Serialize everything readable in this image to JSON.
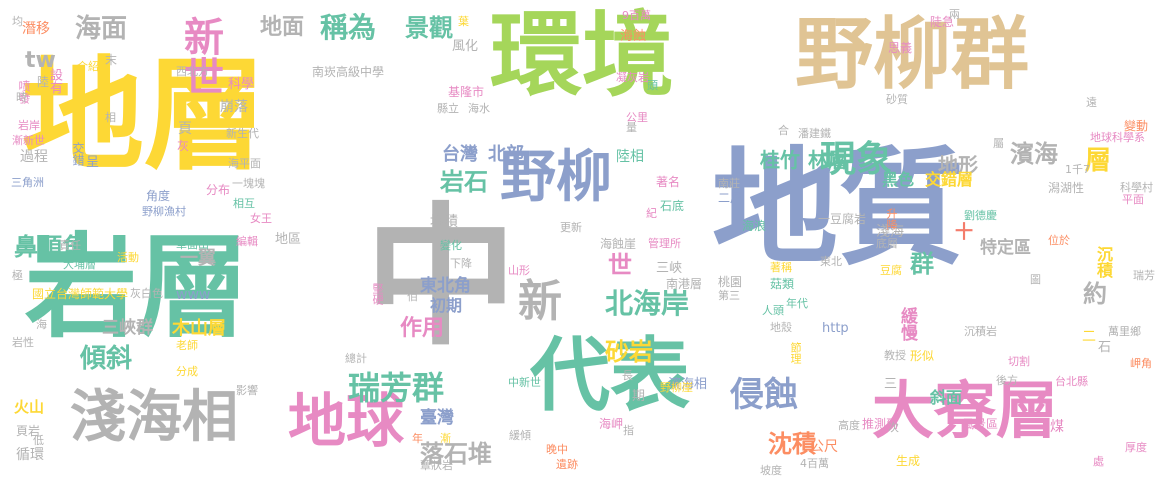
{
  "palette": {
    "yellow": "#FDD835",
    "green": "#A5D65A",
    "blue": "#8C9FCB",
    "tan": "#E0C494",
    "teal": "#66C2A5",
    "gray": "#B3B3B3",
    "pink": "#E78AC3",
    "orange": "#FC8D62",
    "red": "#F47C6B"
  },
  "words": [
    {
      "text": "地層",
      "color": "yellow"
    },
    {
      "text": "環境",
      "color": "green"
    },
    {
      "text": "野柳群",
      "color": "tan"
    },
    {
      "text": "地質",
      "color": "blue"
    },
    {
      "text": "中",
      "color": "gray"
    },
    {
      "text": "岩層",
      "color": "teal"
    },
    {
      "text": "代表",
      "color": "teal"
    },
    {
      "text": "大寮層",
      "color": "pink"
    },
    {
      "text": "淺海相",
      "color": "gray"
    },
    {
      "text": "地球",
      "color": "pink"
    },
    {
      "text": "野柳",
      "color": "blue"
    },
    {
      "text": "新",
      "color": "gray"
    },
    {
      "text": "侵蝕",
      "color": "blue"
    },
    {
      "text": "現象",
      "color": "teal"
    },
    {
      "text": "新世",
      "color": "pink"
    },
    {
      "text": "海面",
      "color": "gray"
    },
    {
      "text": "地面",
      "color": "gray"
    },
    {
      "text": "稱為",
      "color": "teal"
    },
    {
      "text": "景觀",
      "color": "teal"
    },
    {
      "text": "濱海",
      "color": "gray"
    },
    {
      "text": "地形",
      "color": "gray"
    },
    {
      "text": "瑞芳群",
      "color": "teal"
    },
    {
      "text": "北海岸",
      "color": "teal"
    },
    {
      "text": "鼻頭角",
      "color": "teal"
    },
    {
      "text": "傾斜",
      "color": "teal"
    },
    {
      "text": "砂岩",
      "color": "yellow"
    },
    {
      "text": "沈積",
      "color": "orange"
    },
    {
      "text": "落石堆",
      "color": "gray"
    },
    {
      "text": "岩石",
      "color": "teal"
    },
    {
      "text": "台灣",
      "color": "blue"
    },
    {
      "text": "北部",
      "color": "blue"
    },
    {
      "text": "桂竹",
      "color": "teal"
    },
    {
      "text": "林層",
      "color": "teal"
    },
    {
      "text": "群",
      "color": "teal"
    },
    {
      "text": "世",
      "color": "pink"
    },
    {
      "text": "層",
      "color": "yellow"
    },
    {
      "text": "約",
      "color": "gray"
    },
    {
      "text": "作用",
      "color": "pink"
    },
    {
      "text": "tw",
      "color": "gray"
    },
    {
      "text": "三峽群",
      "color": "gray"
    },
    {
      "text": "木山層",
      "color": "yellow"
    },
    {
      "text": "一翼",
      "color": "gray"
    },
    {
      "text": "交錯層",
      "color": "yellow"
    },
    {
      "text": "黑色",
      "color": "teal"
    },
    {
      "text": "特定區",
      "color": "gray"
    },
    {
      "text": "沉積",
      "color": "yellow"
    },
    {
      "text": "緩慢",
      "color": "pink"
    },
    {
      "text": "斜面",
      "color": "teal"
    },
    {
      "text": "臺灣",
      "color": "blue"
    },
    {
      "text": "東北角",
      "color": "blue"
    },
    {
      "text": "初期",
      "color": "blue"
    },
    {
      "text": "南崁高級中學",
      "color": "gray"
    },
    {
      "text": "國立台灣師範大學",
      "color": "yellow"
    },
    {
      "text": "基隆市",
      "color": "pink"
    },
    {
      "text": "海蝕崖",
      "color": "gray"
    },
    {
      "text": "濱海相",
      "color": "blue"
    },
    {
      "text": "堆積",
      "color": "gray"
    },
    {
      "text": "推測到",
      "color": "pink"
    },
    {
      "text": "公尺",
      "color": "orange"
    },
    {
      "text": "風景區",
      "color": "pink"
    },
    {
      "text": "一豆腐岩",
      "color": "gray"
    },
    {
      "text": "淺海",
      "color": "gray"
    },
    {
      "text": "地區",
      "color": "gray"
    },
    {
      "text": "火山",
      "color": "yellow"
    },
    {
      "text": "循環",
      "color": "gray"
    },
    {
      "text": "過程",
      "color": "gray"
    },
    {
      "text": "潛移",
      "color": "orange"
    },
    {
      "text": "設有",
      "color": "pink"
    },
    {
      "text": "喷發",
      "color": "pink"
    },
    {
      "text": "交錯",
      "color": "blue"
    },
    {
      "text": "角度",
      "color": "blue"
    },
    {
      "text": "分布",
      "color": "pink"
    },
    {
      "text": "野柳漁村",
      "color": "blue"
    },
    {
      "text": "地球科學系",
      "color": "pink"
    },
    {
      "text": "科學",
      "color": "pink"
    },
    {
      "text": "崩落",
      "color": "gray"
    },
    {
      "text": "新生代",
      "color": "gray"
    },
    {
      "text": "海平面",
      "color": "gray"
    },
    {
      "text": "http",
      "color": "blue"
    },
    {
      "text": "www",
      "color": "blue"
    },
    {
      "text": "變動",
      "color": "orange"
    },
    {
      "text": "潘建鐵",
      "color": "gray"
    },
    {
      "text": "劉德慶",
      "color": "teal"
    },
    {
      "text": "萬里鄉",
      "color": "gray"
    },
    {
      "text": "台北縣",
      "color": "pink"
    },
    {
      "text": "沉積岩",
      "color": "gray"
    },
    {
      "text": "陸相",
      "color": "teal"
    },
    {
      "text": "海蝕",
      "color": "orange"
    },
    {
      "text": "風化",
      "color": "gray"
    },
    {
      "text": "9百萬",
      "color": "pink"
    },
    {
      "text": "石底",
      "color": "teal"
    },
    {
      "text": "二層",
      "color": "blue"
    },
    {
      "text": "南莊",
      "color": "gray"
    },
    {
      "text": "著名",
      "color": "pink"
    },
    {
      "text": "海浪",
      "color": "teal"
    },
    {
      "text": "三峽",
      "color": "gray"
    },
    {
      "text": "南港層",
      "color": "gray"
    },
    {
      "text": "桃園",
      "color": "gray"
    },
    {
      "text": "第三",
      "color": "gray"
    },
    {
      "text": "菇類",
      "color": "teal"
    },
    {
      "text": "年代",
      "color": "teal"
    },
    {
      "text": "東北",
      "color": "gray"
    },
    {
      "text": "節理",
      "color": "yellow"
    },
    {
      "text": "地殼",
      "color": "gray"
    },
    {
      "text": "人頭",
      "color": "teal"
    },
    {
      "text": "高度",
      "color": "gray"
    },
    {
      "text": "坡度",
      "color": "gray"
    },
    {
      "text": "遺跡",
      "color": "orange"
    },
    {
      "text": "中新世",
      "color": "teal"
    },
    {
      "text": "海岬",
      "color": "pink"
    },
    {
      "text": "緩傾",
      "color": "gray"
    },
    {
      "text": "4百萬",
      "color": "gray"
    },
    {
      "text": "生成",
      "color": "yellow"
    },
    {
      "text": "厚度",
      "color": "pink"
    },
    {
      "text": "煤",
      "color": "pink"
    },
    {
      "text": "教授",
      "color": "gray"
    },
    {
      "text": "形似",
      "color": "yellow"
    },
    {
      "text": "切割",
      "color": "pink"
    },
    {
      "text": "岬角",
      "color": "orange"
    },
    {
      "text": "平面",
      "color": "pink"
    },
    {
      "text": "瑞芳",
      "color": "gray"
    },
    {
      "text": "思義",
      "color": "pink"
    },
    {
      "text": "陡急",
      "color": "pink"
    },
    {
      "text": "潟湖性",
      "color": "gray"
    },
    {
      "text": "科學村",
      "color": "gray"
    },
    {
      "text": "升降",
      "color": "orange"
    },
    {
      "text": "底層",
      "color": "gray"
    },
    {
      "text": "豆腐",
      "color": "yellow"
    },
    {
      "text": "管理所",
      "color": "pink"
    },
    {
      "text": "變化",
      "color": "teal"
    },
    {
      "text": "下降",
      "color": "gray"
    },
    {
      "text": "更新",
      "color": "gray"
    },
    {
      "text": "山形",
      "color": "pink"
    },
    {
      "text": "佰",
      "color": "gray"
    },
    {
      "text": "堅硬",
      "color": "pink"
    },
    {
      "text": "影響",
      "color": "gray"
    },
    {
      "text": "分成",
      "color": "yellow"
    },
    {
      "text": "老師",
      "color": "yellow"
    },
    {
      "text": "總計",
      "color": "gray"
    },
    {
      "text": "活動",
      "color": "yellow"
    },
    {
      "text": "大埔層",
      "color": "teal"
    },
    {
      "text": "灰白色",
      "color": "gray"
    },
    {
      "text": "單面山",
      "color": "teal"
    },
    {
      "text": "編輯",
      "color": "pink"
    },
    {
      "text": "女王",
      "color": "pink"
    },
    {
      "text": "相互",
      "color": "teal"
    },
    {
      "text": "責任",
      "color": "gray"
    },
    {
      "text": "頁",
      "color": "gray"
    },
    {
      "text": "灰",
      "color": "pink"
    },
    {
      "text": "三角洲",
      "color": "blue"
    },
    {
      "text": "岩岸",
      "color": "pink"
    },
    {
      "text": "漸新世",
      "color": "pink"
    },
    {
      "text": "陸",
      "color": "gray"
    },
    {
      "text": "介紹",
      "color": "yellow"
    },
    {
      "text": "西北方",
      "color": "gray"
    },
    {
      "text": "一塊塊",
      "color": "gray"
    },
    {
      "text": "頭",
      "color": "teal"
    },
    {
      "text": "凝灰岩",
      "color": "pink"
    },
    {
      "text": "公里",
      "color": "pink"
    },
    {
      "text": "紀",
      "color": "pink"
    },
    {
      "text": "頁岩",
      "color": "gray"
    },
    {
      "text": "低",
      "color": "gray"
    },
    {
      "text": "位於",
      "color": "orange"
    },
    {
      "text": "岩性",
      "color": "gray"
    },
    {
      "text": "海",
      "color": "gray"
    },
    {
      "text": "均",
      "color": "gray"
    },
    {
      "text": "時",
      "color": "gray"
    },
    {
      "text": "呈",
      "color": "blue"
    },
    {
      "text": "極",
      "color": "gray"
    },
    {
      "text": "末",
      "color": "gray"
    },
    {
      "text": "相",
      "color": "gray"
    },
    {
      "text": "期",
      "color": "gray"
    },
    {
      "text": "長",
      "color": "gray"
    },
    {
      "text": "指",
      "color": "gray"
    },
    {
      "text": "漸",
      "color": "yellow"
    },
    {
      "text": "年",
      "color": "orange"
    },
    {
      "text": "次",
      "color": "gray"
    },
    {
      "text": "處",
      "color": "pink"
    },
    {
      "text": "兩",
      "color": "gray"
    },
    {
      "text": "遠",
      "color": "gray"
    },
    {
      "text": "屬",
      "color": "gray"
    },
    {
      "text": "十",
      "color": "red"
    },
    {
      "text": "二",
      "color": "yellow"
    },
    {
      "text": "石",
      "color": "gray"
    },
    {
      "text": "三",
      "color": "gray"
    },
    {
      "text": "海水",
      "color": "gray"
    },
    {
      "text": "縣立",
      "color": "gray"
    },
    {
      "text": "葉",
      "color": "yellow"
    },
    {
      "text": "砂質",
      "color": "gray"
    },
    {
      "text": "著稱",
      "color": "yellow"
    },
    {
      "text": "晚中",
      "color": "orange"
    },
    {
      "text": "後方",
      "color": "gray"
    },
    {
      "text": "1千7",
      "color": "gray"
    },
    {
      "text": "圖",
      "color": "gray"
    },
    {
      "text": "合",
      "color": "gray"
    },
    {
      "text": "量",
      "color": "gray"
    },
    {
      "text": "蕈狀岩",
      "color": "gray"
    },
    {
      "text": "野柳崖",
      "color": "yellow"
    }
  ]
}
